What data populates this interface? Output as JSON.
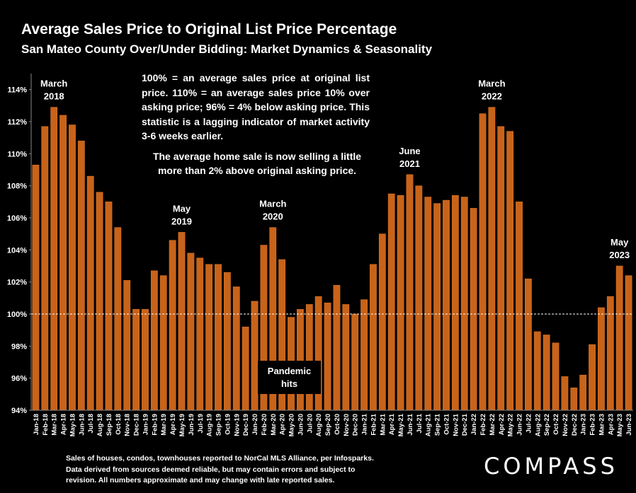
{
  "header": {
    "title": "Average Sales Price to Original List Price Percentage",
    "subtitle": "San Mateo County Over/Under Bidding: Market Dynamics & Seasonality"
  },
  "note": {
    "line1": "100% = an average sales price at original list price. 110% = an average sales price 10% over asking price; 96% = 4% below asking price. This statistic is a lagging indicator of market activity 3-6 weeks earlier.",
    "line2": "The average home sale is now selling a little more than 2% above original asking price."
  },
  "pandemic_label": {
    "line1": "Pandemic",
    "line2": "hits"
  },
  "footnote": {
    "line1": "Sales of houses, condos, townhouses reported to NorCal MLS Alliance, per Infosparks.",
    "line2": "Data derived from sources deemed reliable, but may contain errors and subject to",
    "line3": "revision. All numbers approximate and may change with late reported sales."
  },
  "logo": {
    "text": "COMPASS"
  },
  "colors": {
    "bar": "#c8631a",
    "bar_edge": "#e07a2c",
    "background": "#000000",
    "text": "#ffffff",
    "reference_line": "#ffffff"
  },
  "chart_data": {
    "type": "bar",
    "ylim": [
      94,
      115
    ],
    "yticks": [
      94,
      96,
      98,
      100,
      102,
      104,
      106,
      108,
      110,
      112,
      114
    ],
    "ytick_labels": [
      "94%",
      "96%",
      "98%",
      "100%",
      "102%",
      "104%",
      "106%",
      "108%",
      "110%",
      "112%",
      "114%"
    ],
    "reference_line": 100,
    "reference_line_style": "dashed",
    "categories": [
      "Jan-18",
      "Feb-18",
      "Mar-18",
      "Apr-18",
      "May-18",
      "Jun-18",
      "Jul-18",
      "Aug-18",
      "Sep-18",
      "Oct-18",
      "Nov-18",
      "Dec-18",
      "Jan-19",
      "Feb-19",
      "Mar-19",
      "Apr-19",
      "May-19",
      "Jun-19",
      "Jul-19",
      "Aug-19",
      "Sep-19",
      "Oct-19",
      "Nov-19",
      "Dec-19",
      "Jan-20",
      "Feb-20",
      "Mar-20",
      "Apr-20",
      "May-20",
      "Jun-20",
      "Jul-20",
      "Aug-20",
      "Sep-20",
      "Oct-20",
      "Nov-20",
      "Dec-20",
      "Jan-21",
      "Feb-21",
      "Mar-21",
      "Apr-21",
      "May-21",
      "Jun-21",
      "Jul-21",
      "Aug-21",
      "Sep-21",
      "Oct-21",
      "Nov-21",
      "Dec-21",
      "Jan-22",
      "Feb-22",
      "Mar-22",
      "Apr-22",
      "May-22",
      "Jun-22",
      "Jul-22",
      "Aug-22",
      "Sep-22",
      "Oct-22",
      "Nov-22",
      "Dec-22",
      "Jan-23",
      "Feb-23",
      "Mar-23",
      "Apr-23",
      "May-23",
      "Jun-23"
    ],
    "values": [
      109.3,
      111.7,
      112.9,
      112.4,
      111.8,
      110.8,
      108.6,
      107.6,
      107.0,
      105.4,
      102.1,
      100.3,
      100.3,
      102.7,
      102.4,
      104.6,
      105.1,
      103.8,
      103.5,
      103.1,
      103.1,
      102.6,
      101.7,
      99.2,
      100.8,
      104.3,
      105.4,
      103.4,
      99.8,
      100.3,
      100.6,
      101.1,
      100.7,
      101.8,
      100.6,
      100.0,
      100.9,
      103.1,
      105.0,
      107.5,
      107.4,
      108.7,
      108.0,
      107.3,
      106.9,
      107.1,
      107.4,
      107.3,
      106.6,
      112.5,
      112.9,
      111.7,
      111.4,
      107.0,
      102.2,
      98.9,
      98.7,
      98.2,
      96.1,
      95.4,
      96.2,
      98.1,
      100.4,
      101.1,
      103.0,
      102.4
    ],
    "annotations": [
      {
        "category": "Mar-18",
        "line1": "March",
        "line2": "2018"
      },
      {
        "category": "May-19",
        "line1": "May",
        "line2": "2019"
      },
      {
        "category": "Mar-20",
        "line1": "March",
        "line2": "2020"
      },
      {
        "category": "Jun-21",
        "line1": "June",
        "line2": "2021"
      },
      {
        "category": "Mar-22",
        "line1": "March",
        "line2": "2022"
      },
      {
        "category": "May-23",
        "line1": "May",
        "line2": "2023"
      }
    ]
  }
}
